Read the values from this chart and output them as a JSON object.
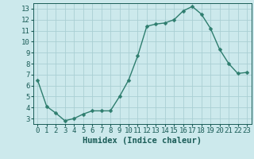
{
  "x": [
    0,
    1,
    2,
    3,
    4,
    5,
    6,
    7,
    8,
    9,
    10,
    11,
    12,
    13,
    14,
    15,
    16,
    17,
    18,
    19,
    20,
    21,
    22,
    23
  ],
  "y": [
    6.5,
    4.1,
    3.5,
    2.8,
    3.0,
    3.4,
    3.7,
    3.7,
    3.7,
    5.0,
    6.5,
    8.7,
    11.4,
    11.6,
    11.7,
    12.0,
    12.8,
    13.2,
    12.5,
    11.2,
    9.3,
    8.0,
    7.1,
    7.2
  ],
  "line_color": "#2e7d6e",
  "marker": "D",
  "marker_size": 2.5,
  "bg_color": "#cce9ec",
  "grid_color": "#aacfd3",
  "xlabel": "Humidex (Indice chaleur)",
  "xlim": [
    -0.5,
    23.5
  ],
  "ylim": [
    2.5,
    13.5
  ],
  "yticks": [
    3,
    4,
    5,
    6,
    7,
    8,
    9,
    10,
    11,
    12,
    13
  ],
  "xticks": [
    0,
    1,
    2,
    3,
    4,
    5,
    6,
    7,
    8,
    9,
    10,
    11,
    12,
    13,
    14,
    15,
    16,
    17,
    18,
    19,
    20,
    21,
    22,
    23
  ],
  "tick_label_color": "#1a5c57",
  "xlabel_fontsize": 7.5,
  "tick_fontsize": 6.5,
  "linewidth": 1.0
}
